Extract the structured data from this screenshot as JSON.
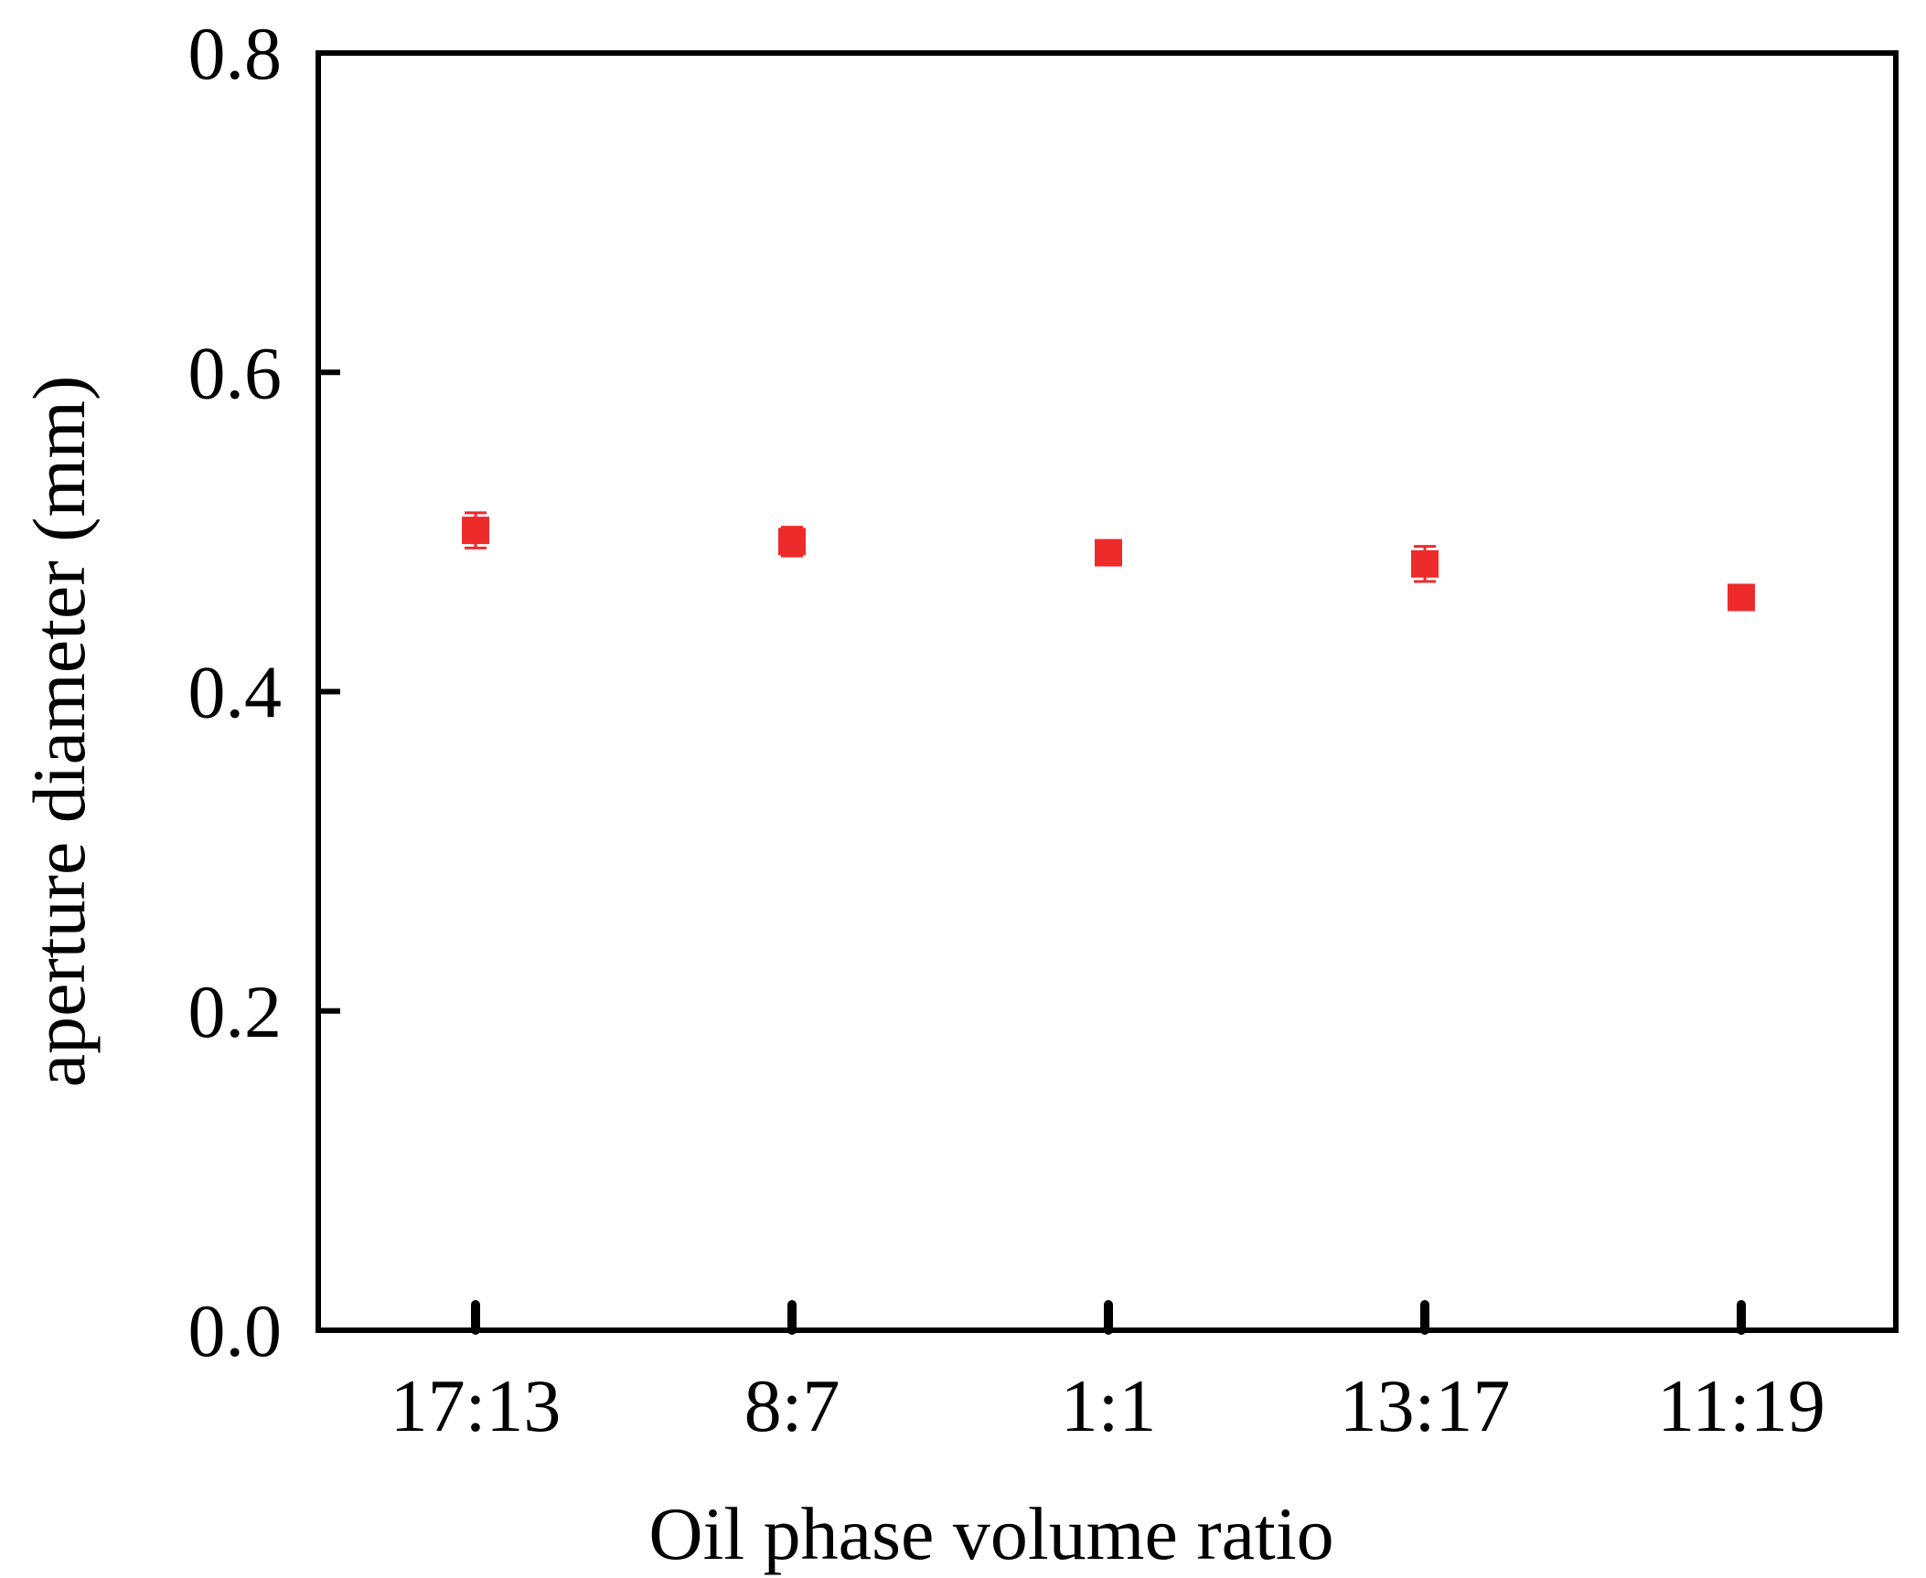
{
  "chart_data": {
    "type": "scatter",
    "title": "",
    "xlabel": "Oil phase volume ratio",
    "ylabel": "aperture diameter (mm)",
    "categories": [
      "17:13",
      "8:7",
      "1:1",
      "13:17",
      "11:19"
    ],
    "series": [
      {
        "values": [
          0.501,
          0.494,
          0.487,
          0.48,
          0.459
        ],
        "errors": [
          0.011,
          0.009,
          0.006,
          0.011,
          0.007
        ],
        "color": "#ee2b2b",
        "marker": "square"
      }
    ],
    "ylim": [
      0,
      0.8
    ],
    "yticks": [
      "0.0",
      "0.2",
      "0.4",
      "0.6",
      "0.8"
    ],
    "grid": false,
    "legend": "none"
  }
}
